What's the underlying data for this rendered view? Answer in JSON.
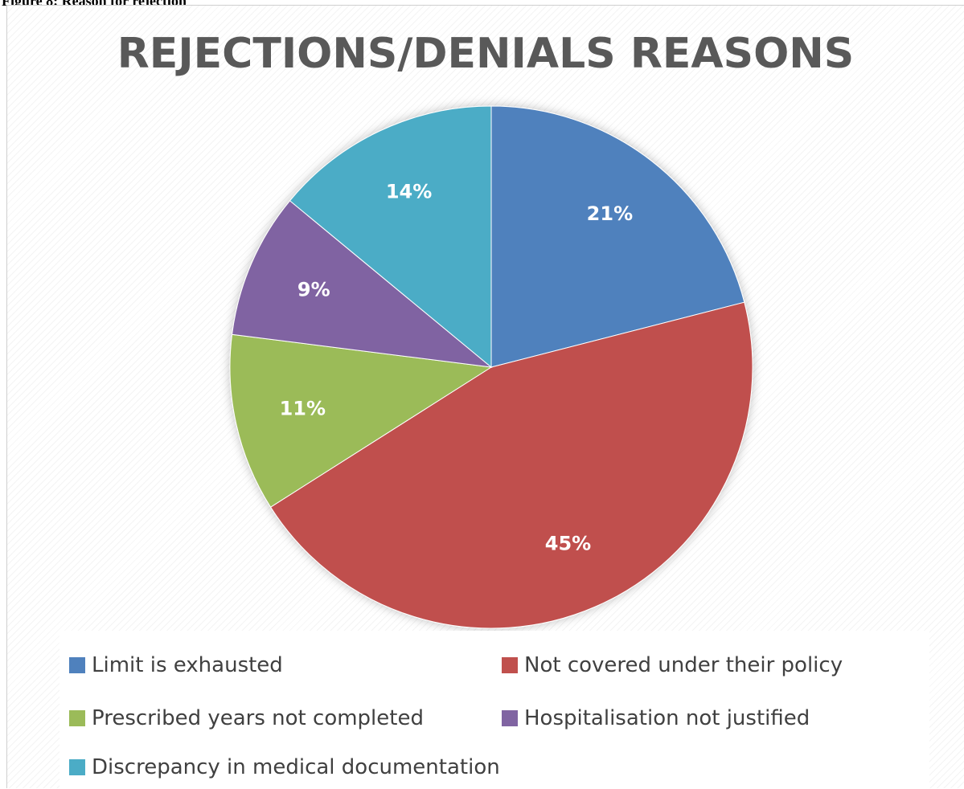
{
  "caption": "Figure 8: Reason for rejection",
  "chart_data": {
    "type": "pie",
    "title": "REJECTIONS/DENIALS REASONS",
    "categories": [
      "Limit is exhausted",
      "Not covered under their policy",
      "Prescribed years not completed",
      "Hospitalisation not justified",
      "Discrepancy in medical documentation"
    ],
    "values": [
      21,
      45,
      11,
      9,
      14
    ],
    "data_labels": [
      "21%",
      "45%",
      "11%",
      "9%",
      "14%"
    ],
    "colors": [
      "#4f81bd",
      "#c0504d",
      "#9bbb59",
      "#8064a2",
      "#4bacc6"
    ],
    "legend_position": "bottom"
  }
}
